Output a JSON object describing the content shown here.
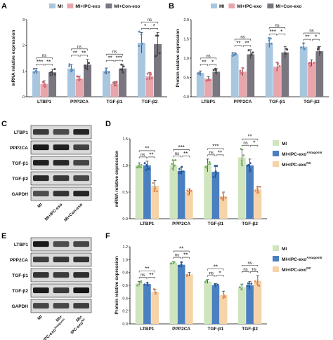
{
  "panel_letters": {
    "A": "A",
    "B": "B",
    "C": "C",
    "D": "D",
    "E": "E",
    "F": "F"
  },
  "colors": {
    "MI_blue_light": "#a9c6df",
    "IPC_pink": "#e8a5ac",
    "Con_gray": "#7a7680",
    "pt_blue": "#5a8fc2",
    "pt_pink": "#d86a78",
    "pt_gray": "#4a464f",
    "MI_green": "#cfe5bd",
    "Antagomir_blue": "#4a7fc0",
    "NC_peach": "#f6d3a8",
    "pt_green": "#7db36a",
    "pt_blue2": "#2b5c9a",
    "pt_peach": "#e8905a"
  },
  "chart_data": [
    {
      "panel": "A",
      "type": "bar",
      "ylabel": "mRNA relative expression",
      "ylim": [
        0,
        3
      ],
      "yticks": [
        "0",
        "1",
        "2",
        "3"
      ],
      "categories": [
        "LTBP1",
        "PPP2CA",
        "TGF-β1",
        "TGF-β2"
      ],
      "series": [
        {
          "name": "MI",
          "values": [
            1.0,
            1.1,
            1.0,
            2.1
          ]
        },
        {
          "name": "MI+IPC-exo",
          "values": [
            0.5,
            0.7,
            0.5,
            0.8
          ]
        },
        {
          "name": "MI+Con-exo",
          "values": [
            0.95,
            1.25,
            1.1,
            2.05
          ]
        }
      ],
      "errors": [
        [
          0.1,
          0.15,
          0.12,
          0.4
        ],
        [
          0.12,
          0.1,
          0.08,
          0.15
        ],
        [
          0.12,
          0.2,
          0.15,
          0.45
        ]
      ],
      "significance": [
        {
          "cat": 0,
          "pairs": [
            [
              "***",
              "**"
            ],
            [
              "ns"
            ]
          ]
        },
        {
          "cat": 1,
          "pairs": [
            [
              "**",
              "**"
            ],
            [
              "ns"
            ]
          ]
        },
        {
          "cat": 2,
          "pairs": [
            [
              "**",
              "***"
            ],
            [
              "ns"
            ]
          ]
        },
        {
          "cat": 3,
          "pairs": [
            [
              "*",
              "*"
            ],
            [
              "ns"
            ]
          ]
        }
      ],
      "legend": [
        "MI",
        "MI+IPC-exo",
        "MI+Con-exo"
      ]
    },
    {
      "panel": "B",
      "type": "bar",
      "ylabel": "Protein relative expression",
      "ylim": [
        0,
        2.0
      ],
      "yticks": [
        "0.0",
        "0.5",
        "1.0",
        "1.5",
        "2.0"
      ],
      "categories": [
        "LTBP1",
        "PPP2CA",
        "TGF-β1",
        "TGF-β2"
      ],
      "series": [
        {
          "name": "MI",
          "values": [
            0.62,
            1.1,
            1.4,
            1.3
          ]
        },
        {
          "name": "MI+IPC-exo",
          "values": [
            0.47,
            0.65,
            0.78,
            0.88
          ]
        },
        {
          "name": "MI+Con-exo",
          "values": [
            0.65,
            1.1,
            1.15,
            1.18
          ]
        }
      ],
      "errors": [
        [
          0.05,
          0.04,
          0.12,
          0.08
        ],
        [
          0.05,
          0.1,
          0.1,
          0.08
        ],
        [
          0.08,
          0.12,
          0.15,
          0.12
        ]
      ],
      "significance": [
        {
          "cat": 0,
          "pairs": [
            [
              "**",
              "*"
            ],
            [
              "ns"
            ]
          ]
        },
        {
          "cat": 1,
          "pairs": [
            [
              "**",
              "**"
            ],
            [
              "ns"
            ]
          ]
        },
        {
          "cat": 2,
          "pairs": [
            [
              "***",
              "*"
            ],
            [
              "ns"
            ]
          ]
        },
        {
          "cat": 3,
          "pairs": [
            [
              "**",
              "*"
            ],
            [
              "ns"
            ]
          ]
        }
      ],
      "legend": [
        "MI",
        "MI+IPC-exo",
        "MI+Con-exo"
      ]
    },
    {
      "panel": "D",
      "type": "bar",
      "ylabel": "mRNA relative expression",
      "ylim": [
        0.0,
        1.5
      ],
      "yticks": [
        "0.0",
        "0.5",
        "1.0",
        "1.5"
      ],
      "categories": [
        "LTBP1",
        "PPP2CA",
        "TGF-β1",
        "TGF-β2"
      ],
      "series": [
        {
          "name": "MI",
          "values": [
            1.0,
            1.0,
            1.0,
            1.15
          ]
        },
        {
          "name": "MI+IPC-exo Antagomir",
          "values": [
            1.0,
            0.9,
            0.88,
            1.0
          ]
        },
        {
          "name": "MI+IPC-exo NC",
          "values": [
            0.62,
            0.5,
            0.42,
            0.55
          ]
        }
      ],
      "errors": [
        [
          0.05,
          0.1,
          0.12,
          0.15
        ],
        [
          0.08,
          0.07,
          0.12,
          0.12
        ],
        [
          0.1,
          0.06,
          0.08,
          0.06
        ]
      ],
      "significance": [
        {
          "cat": 0,
          "pairs": [
            [
              "ns",
              "**"
            ],
            [
              "**"
            ]
          ]
        },
        {
          "cat": 1,
          "pairs": [
            [
              "ns",
              "**"
            ],
            [
              "***"
            ]
          ]
        },
        {
          "cat": 2,
          "pairs": [
            [
              "ns",
              "**"
            ],
            [
              "***"
            ]
          ]
        },
        {
          "cat": 3,
          "pairs": [
            [
              "ns",
              "*"
            ],
            [
              "**"
            ]
          ]
        }
      ],
      "legend": [
        [
          "MI",
          ""
        ],
        [
          "MI+IPC-exo",
          "Antagomir"
        ],
        [
          "MI+IPC-exo",
          "NC"
        ]
      ]
    },
    {
      "panel": "F",
      "type": "bar",
      "ylabel": "Protein relative expression",
      "ylim": [
        0.0,
        1.2
      ],
      "yticks": [
        "0.0",
        "0.2",
        "0.4",
        "0.6",
        "0.8",
        "1.0",
        "1.2"
      ],
      "categories": [
        "LTBP1",
        "PPP2CA",
        "TGF-β1",
        "TGF-β2"
      ],
      "series": [
        {
          "name": "MI",
          "values": [
            0.63,
            0.95,
            0.66,
            0.57
          ]
        },
        {
          "name": "MI+IPC-exo Antagomir",
          "values": [
            0.62,
            0.92,
            0.6,
            0.6
          ]
        },
        {
          "name": "MI+IPC-exo NC",
          "values": [
            0.5,
            0.77,
            0.45,
            0.67
          ]
        }
      ],
      "errors": [
        [
          0.03,
          0.02,
          0.03,
          0.05
        ],
        [
          0.02,
          0.04,
          0.03,
          0.06
        ],
        [
          0.04,
          0.03,
          0.06,
          0.08
        ]
      ],
      "significance": [
        {
          "cat": 0,
          "pairs": [
            [
              "ns",
              "**"
            ],
            [
              "**"
            ]
          ]
        },
        {
          "cat": 1,
          "pairs": [
            [
              "ns",
              "**"
            ],
            [
              "**"
            ]
          ]
        },
        {
          "cat": 2,
          "pairs": [
            [
              "ns",
              "*"
            ],
            [
              "**"
            ]
          ]
        },
        {
          "cat": 3,
          "pairs": [
            [
              "ns",
              "ns"
            ],
            [
              "ns"
            ]
          ]
        }
      ],
      "legend": [
        [
          "MI",
          ""
        ],
        [
          "MI+IPC-exo",
          "Antagomir"
        ],
        [
          "MI+IPC-exo",
          "NC"
        ]
      ]
    }
  ],
  "blot_C": {
    "rows": [
      "LTBP1",
      "PPP2CA",
      "TGF-β1",
      "TGF-β2",
      "GAPDH"
    ],
    "lanes": [
      "MI",
      "MI+IPC-exo",
      "MI+Con-exo"
    ]
  },
  "blot_E": {
    "rows": [
      "LTBP1",
      "PPP2CA",
      "TGF-β1",
      "TGF-β2",
      "GAPDH"
    ],
    "lanes": [
      [
        "MI",
        ""
      ],
      [
        "MI+",
        "IPC-exo",
        "Antagomir"
      ],
      [
        "MI+",
        "IPC-exo",
        "NC"
      ]
    ]
  }
}
